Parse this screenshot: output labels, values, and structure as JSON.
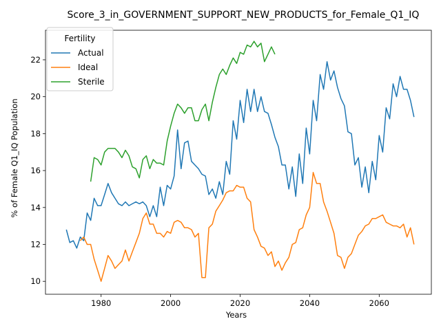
{
  "chart_data": {
    "type": "line",
    "title": "Score_3_in_GOVERNMENT_SUPPORT_NEW_PRODUCTS_for_Female_Q1_IQ",
    "xlabel": "Years",
    "ylabel": "% of Female Q1_IQ Population",
    "xlim": [
      1964,
      2075
    ],
    "ylim": [
      9.3,
      23.6
    ],
    "xticks": [
      1980,
      2000,
      2020,
      2040,
      2060
    ],
    "yticks": [
      10,
      12,
      14,
      16,
      18,
      20,
      22
    ],
    "grid": false,
    "legend": {
      "title": "Fertility",
      "placement": "top-left"
    },
    "series": [
      {
        "name": "Actual",
        "color": "#1f77b4",
        "points": [
          [
            1970,
            12.8
          ],
          [
            1971,
            12.1
          ],
          [
            1972,
            12.2
          ],
          [
            1973,
            11.8
          ],
          [
            1974,
            12.4
          ],
          [
            1975,
            12.2
          ],
          [
            1976,
            13.7
          ],
          [
            1977,
            13.3
          ],
          [
            1978,
            14.5
          ],
          [
            1979,
            14.1
          ],
          [
            1980,
            14.1
          ],
          [
            1981,
            14.7
          ],
          [
            1982,
            15.3
          ],
          [
            1983,
            14.8
          ],
          [
            1984,
            14.5
          ],
          [
            1985,
            14.2
          ],
          [
            1986,
            14.1
          ],
          [
            1987,
            14.3
          ],
          [
            1988,
            14.1
          ],
          [
            1989,
            14.2
          ],
          [
            1990,
            14.3
          ],
          [
            1991,
            14.2
          ],
          [
            1992,
            14.3
          ],
          [
            1993,
            14.1
          ],
          [
            1994,
            13.5
          ],
          [
            1995,
            14.1
          ],
          [
            1996,
            13.5
          ],
          [
            1997,
            15.1
          ],
          [
            1998,
            14.1
          ],
          [
            1999,
            15.2
          ],
          [
            2000,
            15.0
          ],
          [
            2001,
            15.7
          ],
          [
            2002,
            18.2
          ],
          [
            2003,
            16.1
          ],
          [
            2004,
            17.5
          ],
          [
            2005,
            17.6
          ],
          [
            2006,
            16.5
          ],
          [
            2007,
            16.3
          ],
          [
            2008,
            16.1
          ],
          [
            2009,
            15.8
          ],
          [
            2010,
            15.7
          ],
          [
            2011,
            14.7
          ],
          [
            2012,
            15.0
          ],
          [
            2013,
            14.5
          ],
          [
            2014,
            15.4
          ],
          [
            2015,
            14.7
          ],
          [
            2016,
            16.5
          ],
          [
            2017,
            15.8
          ],
          [
            2018,
            18.7
          ],
          [
            2019,
            17.7
          ],
          [
            2020,
            19.8
          ],
          [
            2021,
            18.6
          ],
          [
            2022,
            20.4
          ],
          [
            2023,
            19.2
          ],
          [
            2024,
            20.4
          ],
          [
            2025,
            19.2
          ],
          [
            2026,
            20.0
          ],
          [
            2027,
            19.2
          ],
          [
            2028,
            19.1
          ],
          [
            2029,
            18.5
          ],
          [
            2030,
            17.8
          ],
          [
            2031,
            17.3
          ],
          [
            2032,
            16.3
          ],
          [
            2033,
            16.3
          ],
          [
            2034,
            15.0
          ],
          [
            2035,
            16.2
          ],
          [
            2036,
            14.6
          ],
          [
            2037,
            16.9
          ],
          [
            2038,
            15.3
          ],
          [
            2039,
            18.3
          ],
          [
            2040,
            16.9
          ],
          [
            2041,
            19.8
          ],
          [
            2042,
            18.7
          ],
          [
            2043,
            21.2
          ],
          [
            2044,
            20.4
          ],
          [
            2045,
            21.9
          ],
          [
            2046,
            20.9
          ],
          [
            2047,
            21.4
          ],
          [
            2048,
            20.5
          ],
          [
            2049,
            19.9
          ],
          [
            2050,
            19.5
          ],
          [
            2051,
            18.1
          ],
          [
            2052,
            18.0
          ],
          [
            2053,
            16.3
          ],
          [
            2054,
            16.7
          ],
          [
            2055,
            15.1
          ],
          [
            2056,
            16.2
          ],
          [
            2057,
            14.8
          ],
          [
            2058,
            16.5
          ],
          [
            2059,
            15.5
          ],
          [
            2060,
            17.9
          ],
          [
            2061,
            17.0
          ],
          [
            2062,
            19.4
          ],
          [
            2063,
            18.8
          ],
          [
            2064,
            20.7
          ],
          [
            2065,
            20.0
          ],
          [
            2066,
            21.1
          ],
          [
            2067,
            20.4
          ],
          [
            2068,
            20.4
          ],
          [
            2069,
            19.8
          ],
          [
            2070,
            18.9
          ]
        ]
      },
      {
        "name": "Ideal",
        "color": "#ff7f0e",
        "points": [
          [
            1974,
            12.2
          ],
          [
            1975,
            12.4
          ],
          [
            1976,
            12.0
          ],
          [
            1977,
            12.0
          ],
          [
            1978,
            11.2
          ],
          [
            1979,
            10.6
          ],
          [
            1980,
            10.0
          ],
          [
            1981,
            10.7
          ],
          [
            1982,
            11.4
          ],
          [
            1983,
            11.1
          ],
          [
            1984,
            10.7
          ],
          [
            1985,
            10.9
          ],
          [
            1986,
            11.1
          ],
          [
            1987,
            11.7
          ],
          [
            1988,
            11.1
          ],
          [
            1989,
            11.6
          ],
          [
            1990,
            12.1
          ],
          [
            1991,
            12.6
          ],
          [
            1992,
            13.4
          ],
          [
            1993,
            13.7
          ],
          [
            1994,
            13.1
          ],
          [
            1995,
            13.1
          ],
          [
            1996,
            12.6
          ],
          [
            1997,
            12.6
          ],
          [
            1998,
            12.4
          ],
          [
            1999,
            12.7
          ],
          [
            2000,
            12.6
          ],
          [
            2001,
            13.2
          ],
          [
            2002,
            13.3
          ],
          [
            2003,
            13.2
          ],
          [
            2004,
            12.9
          ],
          [
            2005,
            12.9
          ],
          [
            2006,
            12.8
          ],
          [
            2007,
            12.4
          ],
          [
            2008,
            12.6
          ],
          [
            2009,
            10.2
          ],
          [
            2010,
            10.2
          ],
          [
            2011,
            12.9
          ],
          [
            2012,
            13.1
          ],
          [
            2013,
            13.8
          ],
          [
            2014,
            14.1
          ],
          [
            2015,
            14.4
          ],
          [
            2016,
            14.8
          ],
          [
            2017,
            14.9
          ],
          [
            2018,
            14.9
          ],
          [
            2019,
            15.2
          ],
          [
            2020,
            15.1
          ],
          [
            2021,
            15.1
          ],
          [
            2022,
            14.5
          ],
          [
            2023,
            14.3
          ],
          [
            2024,
            12.8
          ],
          [
            2025,
            12.4
          ],
          [
            2026,
            11.9
          ],
          [
            2027,
            11.8
          ],
          [
            2028,
            11.4
          ],
          [
            2029,
            11.6
          ],
          [
            2030,
            10.8
          ],
          [
            2031,
            11.1
          ],
          [
            2032,
            10.6
          ],
          [
            2033,
            11.0
          ],
          [
            2034,
            11.3
          ],
          [
            2035,
            12.0
          ],
          [
            2036,
            12.1
          ],
          [
            2037,
            12.8
          ],
          [
            2038,
            12.9
          ],
          [
            2039,
            13.6
          ],
          [
            2040,
            14.0
          ],
          [
            2041,
            15.9
          ],
          [
            2042,
            15.3
          ],
          [
            2043,
            15.3
          ],
          [
            2044,
            14.3
          ],
          [
            2045,
            13.8
          ],
          [
            2046,
            13.2
          ],
          [
            2047,
            12.6
          ],
          [
            2048,
            11.4
          ],
          [
            2049,
            11.3
          ],
          [
            2050,
            10.7
          ],
          [
            2051,
            11.3
          ],
          [
            2052,
            11.5
          ],
          [
            2053,
            12.0
          ],
          [
            2054,
            12.5
          ],
          [
            2055,
            12.7
          ],
          [
            2056,
            13.0
          ],
          [
            2057,
            13.1
          ],
          [
            2058,
            13.4
          ],
          [
            2059,
            13.4
          ],
          [
            2060,
            13.5
          ],
          [
            2061,
            13.6
          ],
          [
            2062,
            13.2
          ],
          [
            2063,
            13.1
          ],
          [
            2064,
            13.0
          ],
          [
            2065,
            13.0
          ],
          [
            2066,
            12.9
          ],
          [
            2067,
            13.1
          ],
          [
            2068,
            12.4
          ],
          [
            2069,
            12.9
          ],
          [
            2070,
            12.0
          ]
        ]
      },
      {
        "name": "Sterile",
        "color": "#2ca02c",
        "points": [
          [
            1977,
            15.4
          ],
          [
            1978,
            16.7
          ],
          [
            1979,
            16.6
          ],
          [
            1980,
            16.3
          ],
          [
            1981,
            17.0
          ],
          [
            1982,
            17.2
          ],
          [
            1983,
            17.2
          ],
          [
            1984,
            17.2
          ],
          [
            1985,
            17.0
          ],
          [
            1986,
            16.7
          ],
          [
            1987,
            17.1
          ],
          [
            1988,
            16.8
          ],
          [
            1989,
            16.2
          ],
          [
            1990,
            16.1
          ],
          [
            1991,
            15.6
          ],
          [
            1992,
            16.6
          ],
          [
            1993,
            16.8
          ],
          [
            1994,
            16.1
          ],
          [
            1995,
            16.6
          ],
          [
            1996,
            16.4
          ],
          [
            1997,
            16.4
          ],
          [
            1998,
            16.3
          ],
          [
            1999,
            17.6
          ],
          [
            2000,
            18.4
          ],
          [
            2001,
            19.1
          ],
          [
            2002,
            19.6
          ],
          [
            2003,
            19.4
          ],
          [
            2004,
            19.1
          ],
          [
            2005,
            19.4
          ],
          [
            2006,
            19.4
          ],
          [
            2007,
            18.7
          ],
          [
            2008,
            18.7
          ],
          [
            2009,
            19.3
          ],
          [
            2010,
            19.6
          ],
          [
            2011,
            18.7
          ],
          [
            2012,
            19.7
          ],
          [
            2013,
            20.5
          ],
          [
            2014,
            21.2
          ],
          [
            2015,
            21.5
          ],
          [
            2016,
            21.2
          ],
          [
            2017,
            21.7
          ],
          [
            2018,
            22.1
          ],
          [
            2019,
            21.8
          ],
          [
            2020,
            22.4
          ],
          [
            2021,
            22.3
          ],
          [
            2022,
            22.8
          ],
          [
            2023,
            22.7
          ],
          [
            2024,
            23.0
          ],
          [
            2025,
            22.7
          ],
          [
            2026,
            22.9
          ],
          [
            2027,
            21.9
          ],
          [
            2028,
            22.3
          ],
          [
            2029,
            22.7
          ],
          [
            2030,
            22.3
          ]
        ]
      }
    ]
  }
}
